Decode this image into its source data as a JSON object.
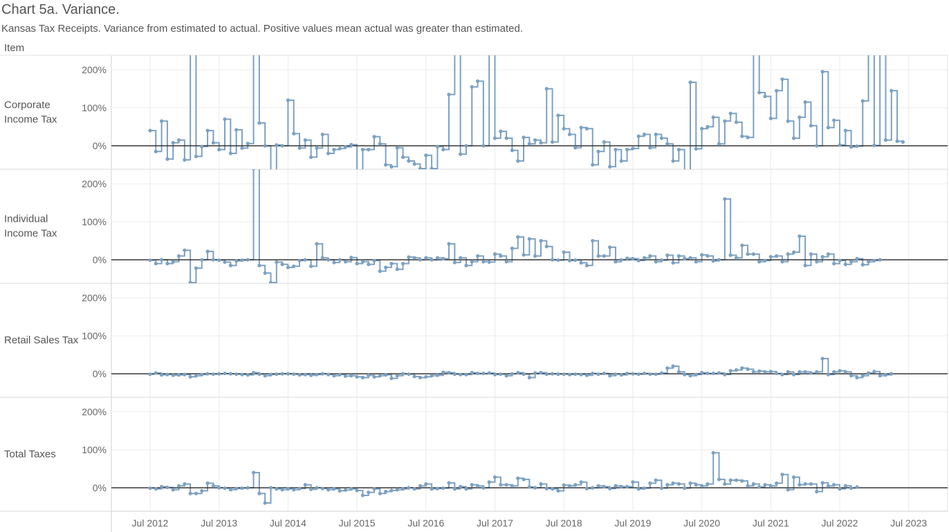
{
  "title": "Chart 5a. Variance.",
  "subtitle": "Kansas Tax Receipts. Variance from estimated to actual. Positive values mean actual was greater than estimated.",
  "row_header": "Item",
  "chart_data": {
    "type": "line",
    "step": true,
    "markers": true,
    "x_start": "2012-07",
    "x_unit": "month",
    "x_tick_labels": [
      "Jul 2012",
      "Jul 2013",
      "Jul 2014",
      "Jul 2015",
      "Jul 2016",
      "Jul 2017",
      "Jul 2018",
      "Jul 2019",
      "Jul 2020",
      "Jul 2021",
      "Jul 2022",
      "Jul 2023"
    ],
    "y_tick_labels": [
      "0%",
      "100%",
      "200%"
    ],
    "ylim": [
      -60,
      240
    ],
    "grid": true,
    "line_color": "#7ca1c2",
    "zero_line_color": "#333333",
    "panels": [
      {
        "name": "Corporate Income Tax",
        "label_lines": [
          "Corporate",
          "Income Tax"
        ],
        "values": [
          40,
          -15,
          65,
          -35,
          8,
          15,
          -37,
          300,
          -28,
          -2,
          40,
          8,
          -10,
          70,
          -20,
          42,
          -6,
          6,
          300,
          60,
          0,
          -80,
          2,
          0,
          120,
          32,
          -6,
          15,
          -30,
          -6,
          30,
          -20,
          -10,
          -7,
          -3,
          3,
          -70,
          -10,
          -10,
          24,
          5,
          -50,
          -55,
          -5,
          -30,
          -40,
          -48,
          -60,
          -25,
          -60,
          -2,
          -10,
          135,
          300,
          -22,
          0,
          155,
          170,
          0,
          300,
          20,
          38,
          20,
          -12,
          -40,
          22,
          5,
          15,
          8,
          150,
          10,
          80,
          45,
          30,
          -5,
          48,
          45,
          -50,
          -15,
          10,
          -55,
          -10,
          -40,
          -10,
          -7,
          25,
          30,
          -5,
          30,
          20,
          5,
          -40,
          -10,
          -70,
          167,
          -8,
          45,
          50,
          75,
          5,
          65,
          85,
          62,
          25,
          22,
          300,
          140,
          130,
          72,
          145,
          175,
          65,
          20,
          75,
          115,
          53,
          0,
          195,
          48,
          67,
          2,
          40,
          -3,
          -1,
          118,
          300,
          1,
          300,
          15,
          145,
          12,
          10
        ]
      },
      {
        "name": "Individual Income Tax",
        "label_lines": [
          "Individual",
          "Income Tax"
        ],
        "values": [
          -1,
          -10,
          0,
          -10,
          -5,
          10,
          25,
          -60,
          -22,
          0,
          22,
          0,
          -1,
          -6,
          -15,
          -3,
          -1,
          0,
          240,
          -15,
          -35,
          -60,
          -6,
          -12,
          -20,
          -17,
          -2,
          0,
          -17,
          42,
          5,
          0,
          -7,
          0,
          -5,
          6,
          -10,
          -5,
          -12,
          -2,
          -30,
          -20,
          -10,
          -25,
          -10,
          7,
          5,
          0,
          5,
          0,
          5,
          3,
          42,
          -7,
          5,
          -15,
          -5,
          10,
          -5,
          -6,
          15,
          10,
          -5,
          30,
          60,
          13,
          55,
          10,
          50,
          35,
          0,
          -1,
          20,
          -2,
          -1,
          -8,
          -15,
          50,
          10,
          10,
          33,
          -5,
          0,
          4,
          3,
          -2,
          5,
          10,
          -5,
          -1,
          12,
          -8,
          10,
          3,
          5,
          -5,
          13,
          10,
          -3,
          0,
          160,
          12,
          5,
          38,
          15,
          15,
          -5,
          -2,
          8,
          10,
          -5,
          15,
          20,
          62,
          -15,
          15,
          -5,
          8,
          15,
          -10,
          -2,
          -12,
          -5,
          3,
          -13,
          -5,
          -2,
          0
        ]
      },
      {
        "name": "Retail Sales Tax",
        "label_lines": [
          "Retail Sales Tax"
        ],
        "values": [
          -1,
          2,
          -3,
          -2,
          -4,
          -3,
          -2,
          -8,
          -5,
          -2,
          0,
          -1,
          0,
          1,
          0,
          -1,
          -2,
          -3,
          3,
          -1,
          -5,
          -2,
          -1,
          0,
          0,
          -1,
          -3,
          -2,
          -4,
          -2,
          0,
          -2,
          -5,
          -2,
          -6,
          -5,
          -8,
          -10,
          -4,
          -8,
          -5,
          -3,
          -12,
          -5,
          0,
          -1,
          -7,
          -10,
          -8,
          -5,
          -4,
          4,
          3,
          -1,
          -2,
          -2,
          3,
          1,
          1,
          2,
          -2,
          -1,
          -5,
          0,
          3,
          -1,
          -10,
          2,
          3,
          -1,
          0,
          -1,
          -1,
          -2,
          -1,
          -2,
          -4,
          1,
          -1,
          1,
          -5,
          -1,
          -3,
          1,
          0,
          -1,
          1,
          -1,
          -1,
          2,
          15,
          20,
          5,
          -2,
          -5,
          -2,
          3,
          1,
          1,
          2,
          -2,
          8,
          10,
          15,
          12,
          5,
          7,
          5,
          6,
          1,
          -2,
          5,
          -2,
          5,
          5,
          2,
          5,
          40,
          -2,
          5,
          8,
          5,
          -5,
          -10,
          -5,
          2,
          6,
          -5,
          -3,
          0
        ]
      },
      {
        "name": "Total Taxes",
        "label_lines": [
          "Total Taxes"
        ],
        "values": [
          -1,
          -3,
          3,
          1,
          -5,
          5,
          10,
          -15,
          -15,
          -8,
          12,
          5,
          0,
          -1,
          -5,
          -2,
          -1,
          0,
          40,
          -15,
          -40,
          0,
          -3,
          -5,
          -3,
          -5,
          -2,
          8,
          -4,
          0,
          -2,
          -5,
          -3,
          -8,
          -6,
          -3,
          -7,
          -20,
          -12,
          -3,
          -15,
          -10,
          -7,
          -5,
          -3,
          0,
          -3,
          5,
          10,
          -3,
          -2,
          -1,
          13,
          -3,
          3,
          -3,
          8,
          5,
          0,
          15,
          28,
          8,
          8,
          5,
          25,
          22,
          2,
          0,
          10,
          -2,
          -3,
          -8,
          7,
          5,
          8,
          15,
          -2,
          0,
          5,
          3,
          -2,
          5,
          3,
          3,
          15,
          -3,
          -1,
          12,
          20,
          -1,
          8,
          12,
          10,
          -1,
          12,
          8,
          5,
          10,
          92,
          22,
          10,
          20,
          20,
          18,
          5,
          10,
          2,
          8,
          5,
          12,
          35,
          -5,
          28,
          8,
          10,
          10,
          -10,
          13,
          5,
          8,
          -3,
          5,
          -1,
          2
        ]
      }
    ]
  }
}
